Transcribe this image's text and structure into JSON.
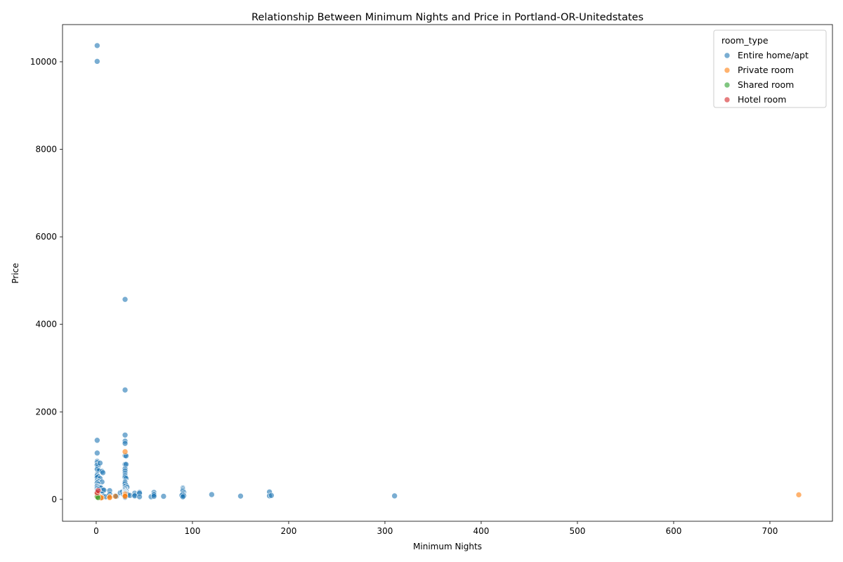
{
  "chart_data": {
    "type": "scatter",
    "title": "Relationship Between Minimum Nights and Price in Portland-OR-Unitedstates",
    "xlabel": "Minimum Nights",
    "ylabel": "Price",
    "xlim": [
      -35,
      765
    ],
    "ylim": [
      -500,
      10850
    ],
    "xticks": [
      0,
      100,
      200,
      300,
      400,
      500,
      600,
      700
    ],
    "yticks": [
      0,
      2000,
      4000,
      6000,
      8000,
      10000
    ],
    "grid": false,
    "legend": {
      "title": "room_type",
      "placement": "top-right",
      "entries": [
        {
          "name": "Entire home/apt",
          "color": "#1f77b4"
        },
        {
          "name": "Private room",
          "color": "#ff7f0e"
        },
        {
          "name": "Shared room",
          "color": "#2ca02c"
        },
        {
          "name": "Hotel room",
          "color": "#d62728"
        }
      ]
    },
    "series": [
      {
        "name": "Entire home/apt",
        "color": "#1f77b4",
        "points": [
          [
            1,
            10370
          ],
          [
            1,
            10010
          ],
          [
            30,
            4570
          ],
          [
            30,
            2500
          ],
          [
            30,
            1470
          ],
          [
            30,
            1330
          ],
          [
            30,
            1280
          ],
          [
            1,
            1350
          ],
          [
            1,
            1060
          ],
          [
            30,
            1000
          ],
          [
            31,
            995
          ],
          [
            30,
            800
          ],
          [
            31,
            800
          ],
          [
            1,
            870
          ],
          [
            1,
            840
          ],
          [
            1,
            800
          ],
          [
            1,
            780
          ],
          [
            2,
            760
          ],
          [
            4,
            830
          ],
          [
            1,
            700
          ],
          [
            1,
            680
          ],
          [
            2,
            660
          ],
          [
            3,
            650
          ],
          [
            6,
            640
          ],
          [
            7,
            610
          ],
          [
            1,
            580
          ],
          [
            1,
            560
          ],
          [
            1,
            540
          ],
          [
            2,
            520
          ],
          [
            1,
            500
          ],
          [
            4,
            480
          ],
          [
            1,
            430
          ],
          [
            2,
            410
          ],
          [
            6,
            400
          ],
          [
            1,
            390
          ],
          [
            1,
            370
          ],
          [
            2,
            350
          ],
          [
            1,
            320
          ],
          [
            1,
            300
          ],
          [
            2,
            290
          ],
          [
            3,
            280
          ],
          [
            4,
            270
          ],
          [
            5,
            260
          ],
          [
            1,
            250
          ],
          [
            2,
            230
          ],
          [
            7,
            220
          ],
          [
            8,
            210
          ],
          [
            1,
            200
          ],
          [
            2,
            190
          ],
          [
            3,
            180
          ],
          [
            1,
            170
          ],
          [
            2,
            160
          ],
          [
            1,
            150
          ],
          [
            3,
            140
          ],
          [
            5,
            130
          ],
          [
            6,
            120
          ],
          [
            1,
            110
          ],
          [
            2,
            100
          ],
          [
            3,
            90
          ],
          [
            4,
            80
          ],
          [
            5,
            75
          ],
          [
            7,
            70
          ],
          [
            8,
            65
          ],
          [
            10,
            60
          ],
          [
            1,
            55
          ],
          [
            2,
            50
          ],
          [
            4,
            45
          ],
          [
            6,
            40
          ],
          [
            14,
            200
          ],
          [
            14,
            120
          ],
          [
            13,
            80
          ],
          [
            20,
            80
          ],
          [
            21,
            70
          ],
          [
            25,
            150
          ],
          [
            27,
            170
          ],
          [
            28,
            120
          ],
          [
            29,
            90
          ],
          [
            30,
            700
          ],
          [
            30,
            650
          ],
          [
            30,
            600
          ],
          [
            30,
            560
          ],
          [
            30,
            530
          ],
          [
            30,
            500
          ],
          [
            31,
            480
          ],
          [
            30,
            420
          ],
          [
            30,
            400
          ],
          [
            30,
            380
          ],
          [
            30,
            350
          ],
          [
            31,
            320
          ],
          [
            30,
            300
          ],
          [
            32,
            280
          ],
          [
            30,
            260
          ],
          [
            30,
            240
          ],
          [
            30,
            220
          ],
          [
            30,
            200
          ],
          [
            31,
            190
          ],
          [
            30,
            180
          ],
          [
            30,
            170
          ],
          [
            30,
            160
          ],
          [
            30,
            150
          ],
          [
            30,
            140
          ],
          [
            30,
            130
          ],
          [
            30,
            120
          ],
          [
            30,
            110
          ],
          [
            30,
            100
          ],
          [
            31,
            95
          ],
          [
            30,
            90
          ],
          [
            30,
            80
          ],
          [
            30,
            75
          ],
          [
            30,
            70
          ],
          [
            30,
            60
          ],
          [
            30,
            50
          ],
          [
            32,
            120
          ],
          [
            33,
            100
          ],
          [
            35,
            90
          ],
          [
            40,
            140
          ],
          [
            40,
            100
          ],
          [
            40,
            80
          ],
          [
            45,
            160
          ],
          [
            45,
            140
          ],
          [
            45,
            60
          ],
          [
            57,
            60
          ],
          [
            60,
            160
          ],
          [
            60,
            120
          ],
          [
            60,
            100
          ],
          [
            60,
            70
          ],
          [
            70,
            70
          ],
          [
            90,
            260
          ],
          [
            90,
            240
          ],
          [
            90,
            220
          ],
          [
            90,
            200
          ],
          [
            90,
            180
          ],
          [
            91,
            160
          ],
          [
            90,
            140
          ],
          [
            90,
            120
          ],
          [
            90,
            100
          ],
          [
            89,
            90
          ],
          [
            91,
            80
          ],
          [
            90,
            60
          ],
          [
            120,
            110
          ],
          [
            150,
            75
          ],
          [
            180,
            170
          ],
          [
            180,
            80
          ],
          [
            182,
            90
          ],
          [
            310,
            80
          ]
        ]
      },
      {
        "name": "Private room",
        "color": "#ff7f0e",
        "points": [
          [
            30,
            1090
          ],
          [
            1,
            120
          ],
          [
            2,
            90
          ],
          [
            3,
            75
          ],
          [
            1,
            60
          ],
          [
            4,
            55
          ],
          [
            2,
            45
          ],
          [
            6,
            40
          ],
          [
            5,
            35
          ],
          [
            14,
            60
          ],
          [
            14,
            40
          ],
          [
            20,
            70
          ],
          [
            30,
            120
          ],
          [
            30,
            90
          ],
          [
            30,
            70
          ],
          [
            730,
            105
          ]
        ]
      },
      {
        "name": "Shared room",
        "color": "#2ca02c",
        "points": [
          [
            1,
            60
          ],
          [
            2,
            40
          ]
        ]
      },
      {
        "name": "Hotel room",
        "color": "#d62728",
        "points": [
          [
            1,
            150
          ],
          [
            2,
            200
          ]
        ]
      }
    ]
  }
}
